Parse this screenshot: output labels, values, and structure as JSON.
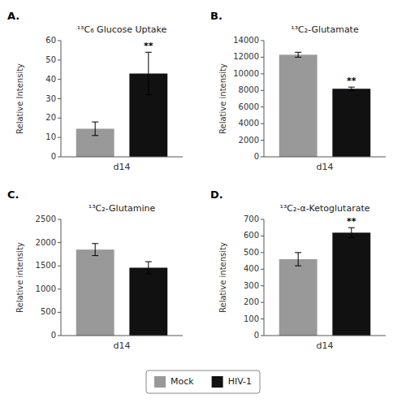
{
  "chart_data": [
    {
      "type": "bar",
      "title": "¹³C₆ Glucose Uptake",
      "y_label": "Relative Intensity",
      "categories": [
        "d14"
      ],
      "series": [
        {
          "name": "Mock",
          "color": "#999999",
          "values": [
            14.5
          ],
          "errors": [
            3.5
          ]
        },
        {
          "name": "HIV-1",
          "color": "#111111",
          "values": [
            43.0
          ],
          "errors": [
            11.0
          ]
        }
      ],
      "ylim": [
        0,
        60
      ],
      "yticks": [
        0,
        10,
        20,
        30,
        40,
        50,
        60
      ],
      "legend": "bottom",
      "annotations": [
        {
          "text": "A."
        },
        {
          "text": "**",
          "series": "HIV-1",
          "category": "d14"
        }
      ]
    },
    {
      "type": "bar",
      "title": "¹³C₂-Glutamate",
      "y_label": "Relative intensity",
      "categories": [
        "d14"
      ],
      "series": [
        {
          "name": "Mock",
          "color": "#999999",
          "values": [
            12300
          ],
          "errors": [
            300
          ]
        },
        {
          "name": "HIV-1",
          "color": "#111111",
          "values": [
            8200
          ],
          "errors": [
            200
          ]
        }
      ],
      "ylim": [
        0,
        14000
      ],
      "yticks": [
        0,
        2000,
        4000,
        6000,
        8000,
        10000,
        12000,
        14000
      ],
      "annotations": [
        {
          "text": "B."
        },
        {
          "text": "**",
          "series": "HIV-1",
          "category": "d14"
        }
      ]
    },
    {
      "type": "bar",
      "title": "¹³C₂-Glutamine",
      "y_label": "Relative intensity",
      "categories": [
        "d14"
      ],
      "series": [
        {
          "name": "Mock",
          "color": "#999999",
          "values": [
            1850
          ],
          "errors": [
            130
          ]
        },
        {
          "name": "HIV-1",
          "color": "#111111",
          "values": [
            1460
          ],
          "errors": [
            130
          ]
        }
      ],
      "ylim": [
        0,
        2500
      ],
      "yticks": [
        0,
        500,
        1000,
        1500,
        2000,
        2500
      ],
      "annotations": [
        {
          "text": "C."
        }
      ]
    },
    {
      "type": "bar",
      "title": "¹³C₂-α-Ketoglutarate",
      "y_label": "Relative intensity",
      "categories": [
        "d14"
      ],
      "series": [
        {
          "name": "Mock",
          "color": "#999999",
          "values": [
            460
          ],
          "errors": [
            40
          ]
        },
        {
          "name": "HIV-1",
          "color": "#111111",
          "values": [
            620
          ],
          "errors": [
            30
          ]
        }
      ],
      "ylim": [
        0,
        700
      ],
      "yticks": [
        0,
        100,
        200,
        300,
        400,
        500,
        600,
        700
      ],
      "annotations": [
        {
          "text": "D."
        },
        {
          "text": "**",
          "series": "HIV-1",
          "category": "d14"
        }
      ]
    }
  ]
}
